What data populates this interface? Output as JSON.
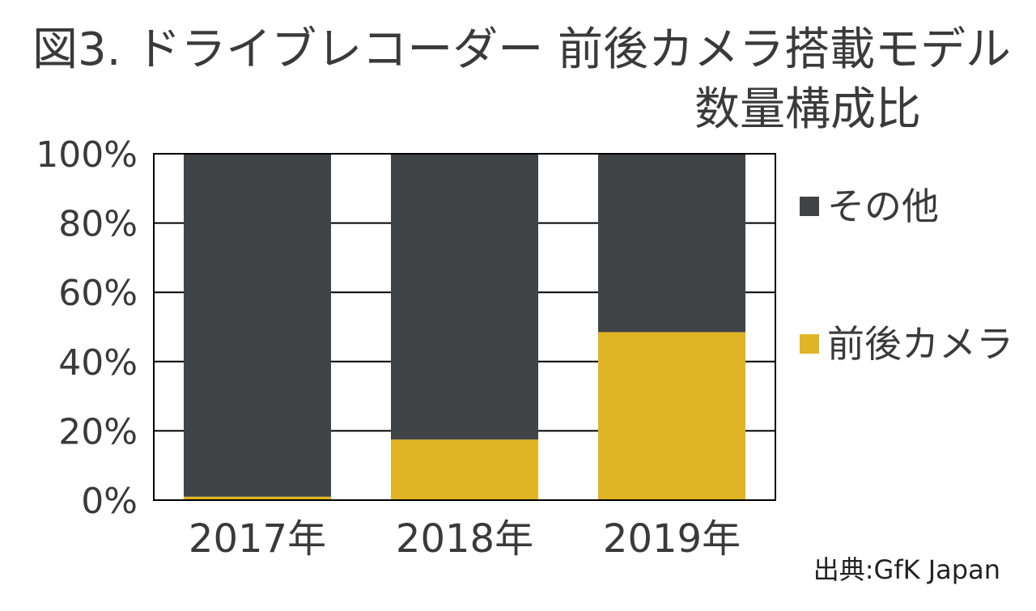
{
  "title_line1": "図3. ドライブレコーダー 前後カメラ搭載モデル",
  "title_line2": "数量構成比",
  "source": "出典:GfK Japan",
  "colors": {
    "other": "#404447",
    "front_rear": "#e0b424",
    "grid": "#000000",
    "text": "#3a3a3a"
  },
  "legend": [
    {
      "label": "その他",
      "color": "#404447"
    },
    {
      "label": "前後カメラ",
      "color": "#e0b424"
    }
  ],
  "chart_data": {
    "type": "bar",
    "stacked": true,
    "title": "図3. ドライブレコーダー 前後カメラ搭載モデル 数量構成比",
    "categories": [
      "2017年",
      "2018年",
      "2019年"
    ],
    "series": [
      {
        "name": "前後カメラ",
        "values": [
          1,
          17.5,
          48.5
        ],
        "color": "#e0b424"
      },
      {
        "name": "その他",
        "values": [
          99,
          82.5,
          51.5
        ],
        "color": "#404447"
      }
    ],
    "y_ticks": [
      "0%",
      "20%",
      "40%",
      "60%",
      "80%",
      "100%"
    ],
    "ylim": [
      0,
      100
    ],
    "grid": true,
    "legend_position": "right"
  }
}
